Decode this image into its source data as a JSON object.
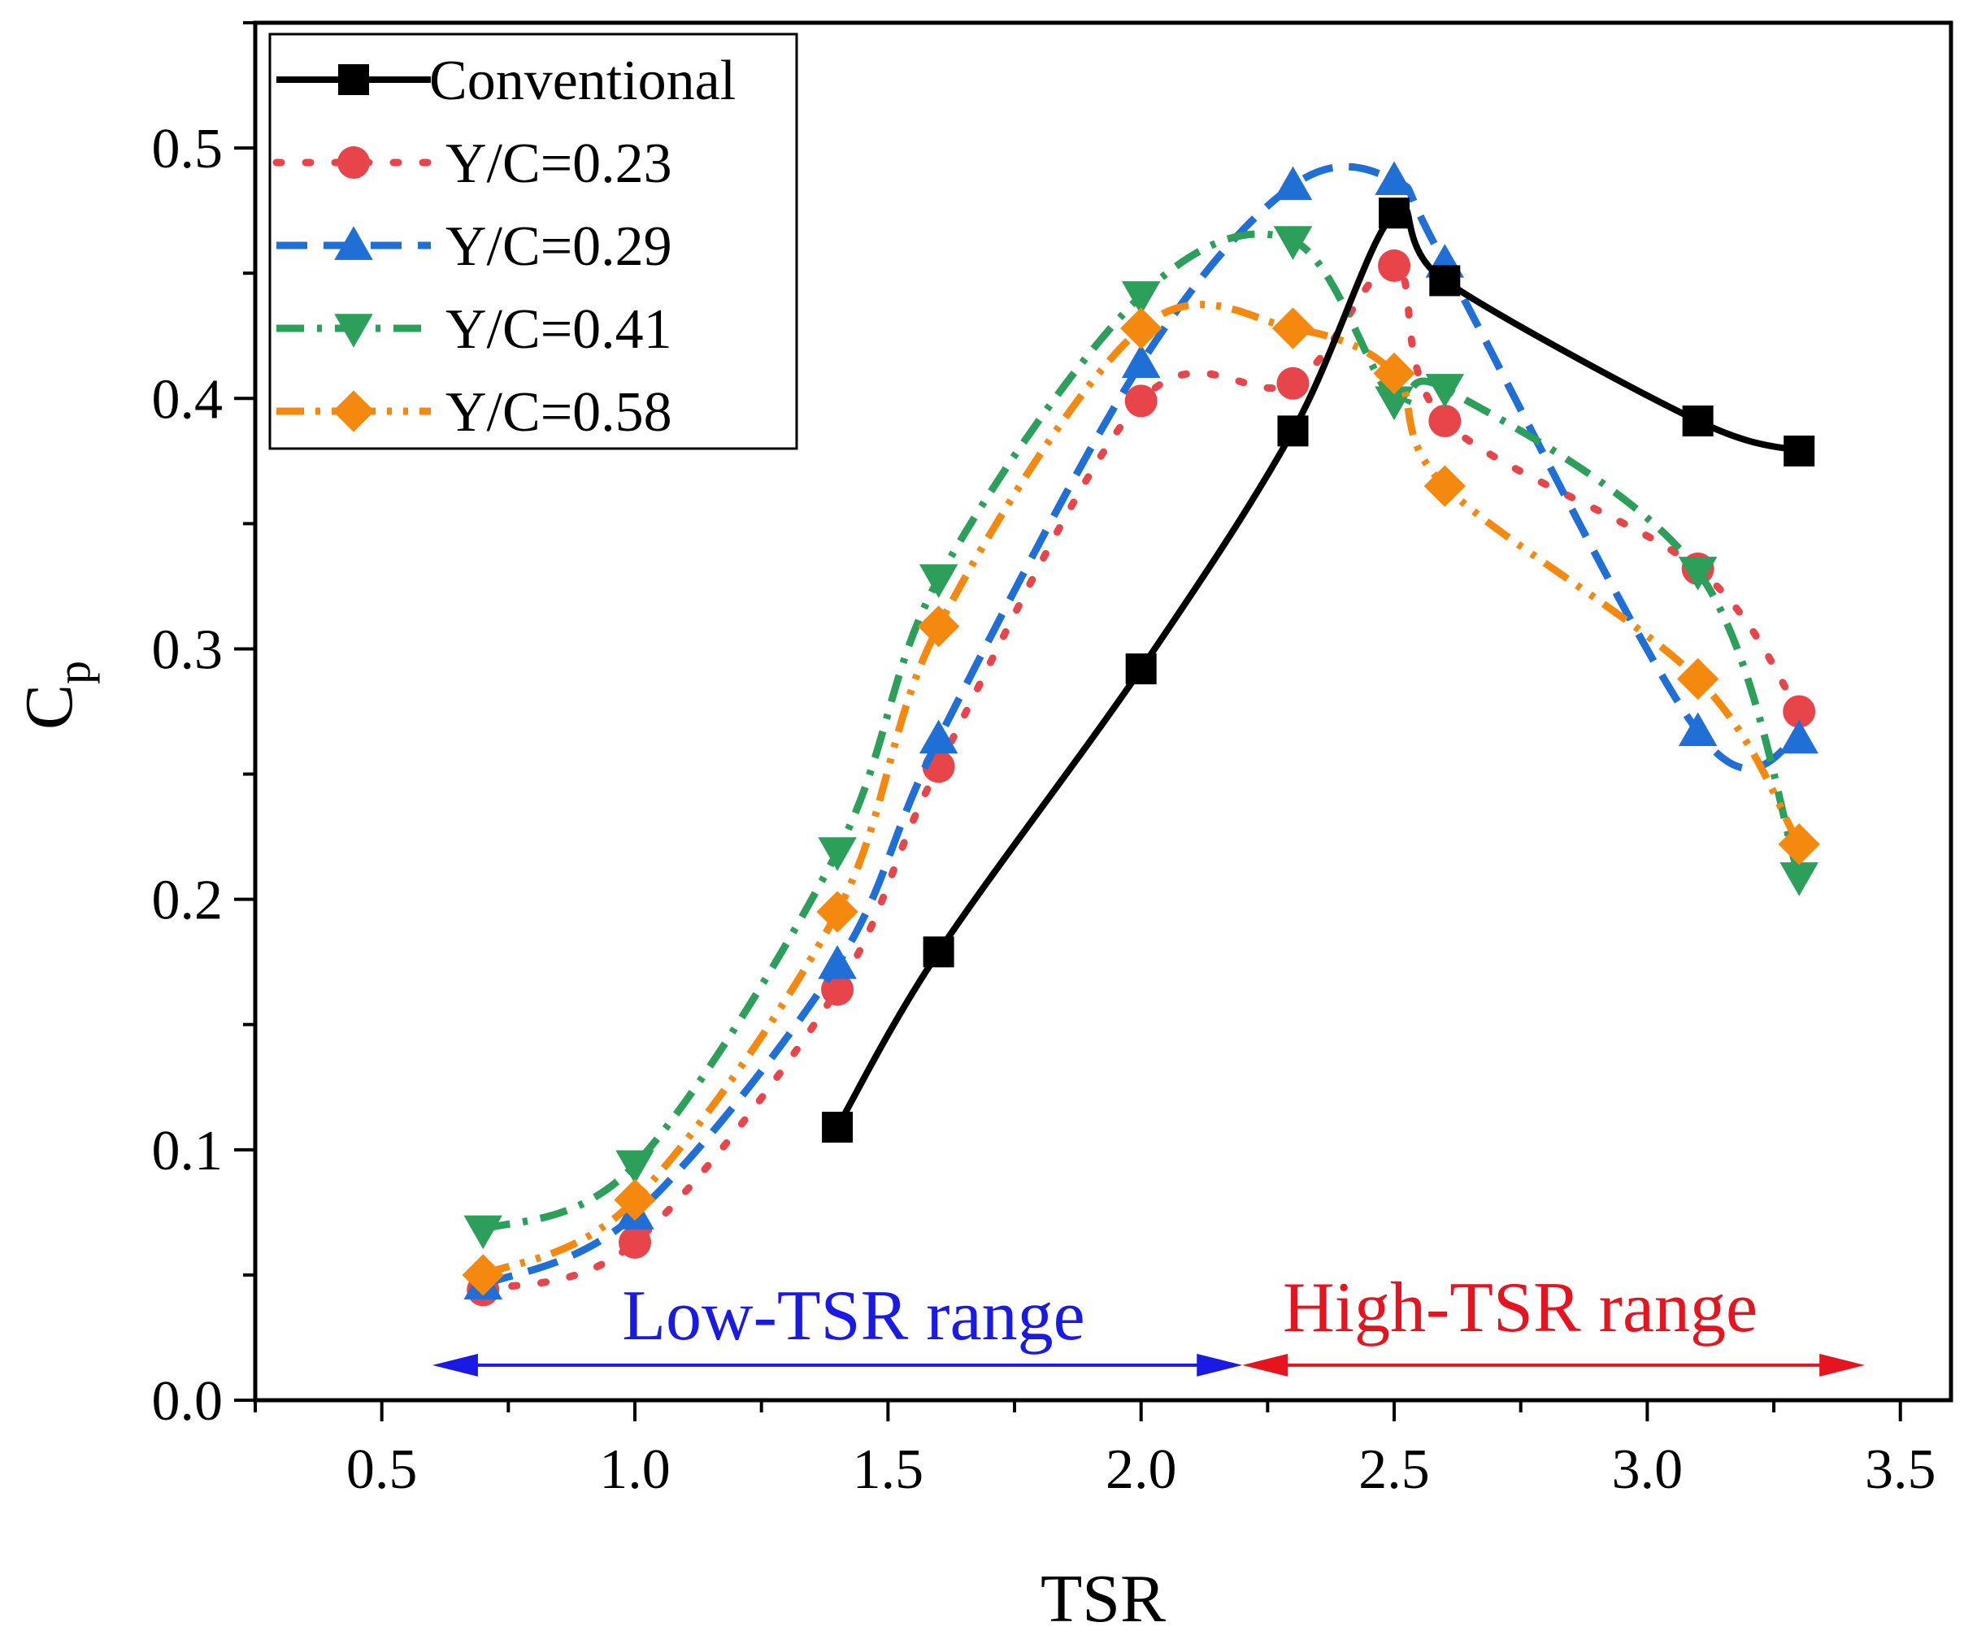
{
  "chart_data": {
    "type": "line",
    "title": "",
    "xlabel": "TSR",
    "ylabel": "C",
    "ylabel_subscript": "p",
    "xlim": [
      0.25,
      3.6
    ],
    "ylim": [
      0.0,
      0.55
    ],
    "xticks": [
      0.5,
      1.0,
      1.5,
      2.0,
      2.5,
      3.0,
      3.5
    ],
    "xtick_labels": [
      "0.5",
      "1.0",
      "1.5",
      "2.0",
      "2.5",
      "3.0",
      "3.5"
    ],
    "yticks": [
      0.0,
      0.1,
      0.2,
      0.3,
      0.4,
      0.5
    ],
    "ytick_labels": [
      "0.0",
      "0.1",
      "0.2",
      "0.3",
      "0.4",
      "0.5"
    ],
    "legend_position": "top-left",
    "series": [
      {
        "name": "Conventional",
        "color": "#000000",
        "marker": "square",
        "dash": "solid",
        "x": [
          1.4,
          1.6,
          2.0,
          2.3,
          2.5,
          2.6,
          3.1,
          3.3
        ],
        "y": [
          0.109,
          0.179,
          0.292,
          0.387,
          0.474,
          0.447,
          0.391,
          0.379
        ]
      },
      {
        "name": "Y/C=0.23",
        "color": "#e8454a",
        "marker": "circle",
        "dash": "dot",
        "x": [
          0.7,
          1.0,
          1.4,
          1.6,
          2.0,
          2.3,
          2.5,
          2.6,
          3.1,
          3.3
        ],
        "y": [
          0.044,
          0.063,
          0.164,
          0.253,
          0.399,
          0.406,
          0.453,
          0.391,
          0.332,
          0.275
        ]
      },
      {
        "name": "Y/C=0.29",
        "color": "#1f6fd6",
        "marker": "triangle-up",
        "dash": "dash",
        "x": [
          0.7,
          1.0,
          1.4,
          1.6,
          2.0,
          2.3,
          2.5,
          2.6,
          3.1,
          3.3
        ],
        "y": [
          0.046,
          0.074,
          0.174,
          0.264,
          0.414,
          0.485,
          0.487,
          0.454,
          0.267,
          0.264
        ]
      },
      {
        "name": "Y/C=0.41",
        "color": "#2ca05a",
        "marker": "triangle-down",
        "dash": "dashdot",
        "x": [
          0.7,
          1.0,
          1.4,
          1.6,
          2.0,
          2.3,
          2.5,
          2.6,
          3.1,
          3.3
        ],
        "y": [
          0.068,
          0.094,
          0.219,
          0.328,
          0.441,
          0.463,
          0.399,
          0.404,
          0.331,
          0.209
        ]
      },
      {
        "name": "Y/C=0.58",
        "color": "#f5890f",
        "marker": "diamond",
        "dash": "dashdotdot",
        "x": [
          0.7,
          1.0,
          1.4,
          1.6,
          2.0,
          2.3,
          2.5,
          2.6,
          3.1,
          3.3
        ],
        "y": [
          0.05,
          0.08,
          0.195,
          0.309,
          0.428,
          0.428,
          0.41,
          0.365,
          0.288,
          0.222
        ]
      }
    ],
    "annotations": [
      {
        "text": "Low-TSR range",
        "color": "#1a1ae6",
        "x_start": 0.6,
        "x_end": 2.2,
        "y": 0.014
      },
      {
        "text": "High-TSR range",
        "color": "#e6141e",
        "x_start": 2.2,
        "x_end": 3.43,
        "y": 0.014
      }
    ]
  }
}
